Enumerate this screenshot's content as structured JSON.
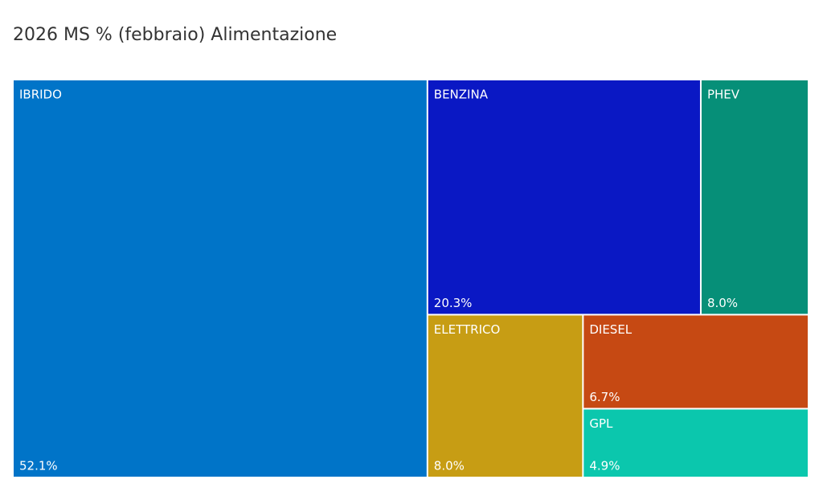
{
  "chart_data": {
    "type": "treemap",
    "title": "2026 MS % (febbraio) Alimentazione",
    "categories": [
      "IBRIDO",
      "BENZINA",
      "PHEV",
      "ELETTRICO",
      "DIESEL",
      "GPL"
    ],
    "values": [
      52.1,
      20.3,
      8.0,
      8.0,
      6.7,
      4.9
    ],
    "value_labels": [
      "52.1%",
      "20.3%",
      "8.0%",
      "8.0%",
      "6.7%",
      "4.9%"
    ],
    "colors": [
      "#0074c8",
      "#0a18c4",
      "#068f78",
      "#c79d14",
      "#c64913",
      "#0bc7ad"
    ]
  }
}
